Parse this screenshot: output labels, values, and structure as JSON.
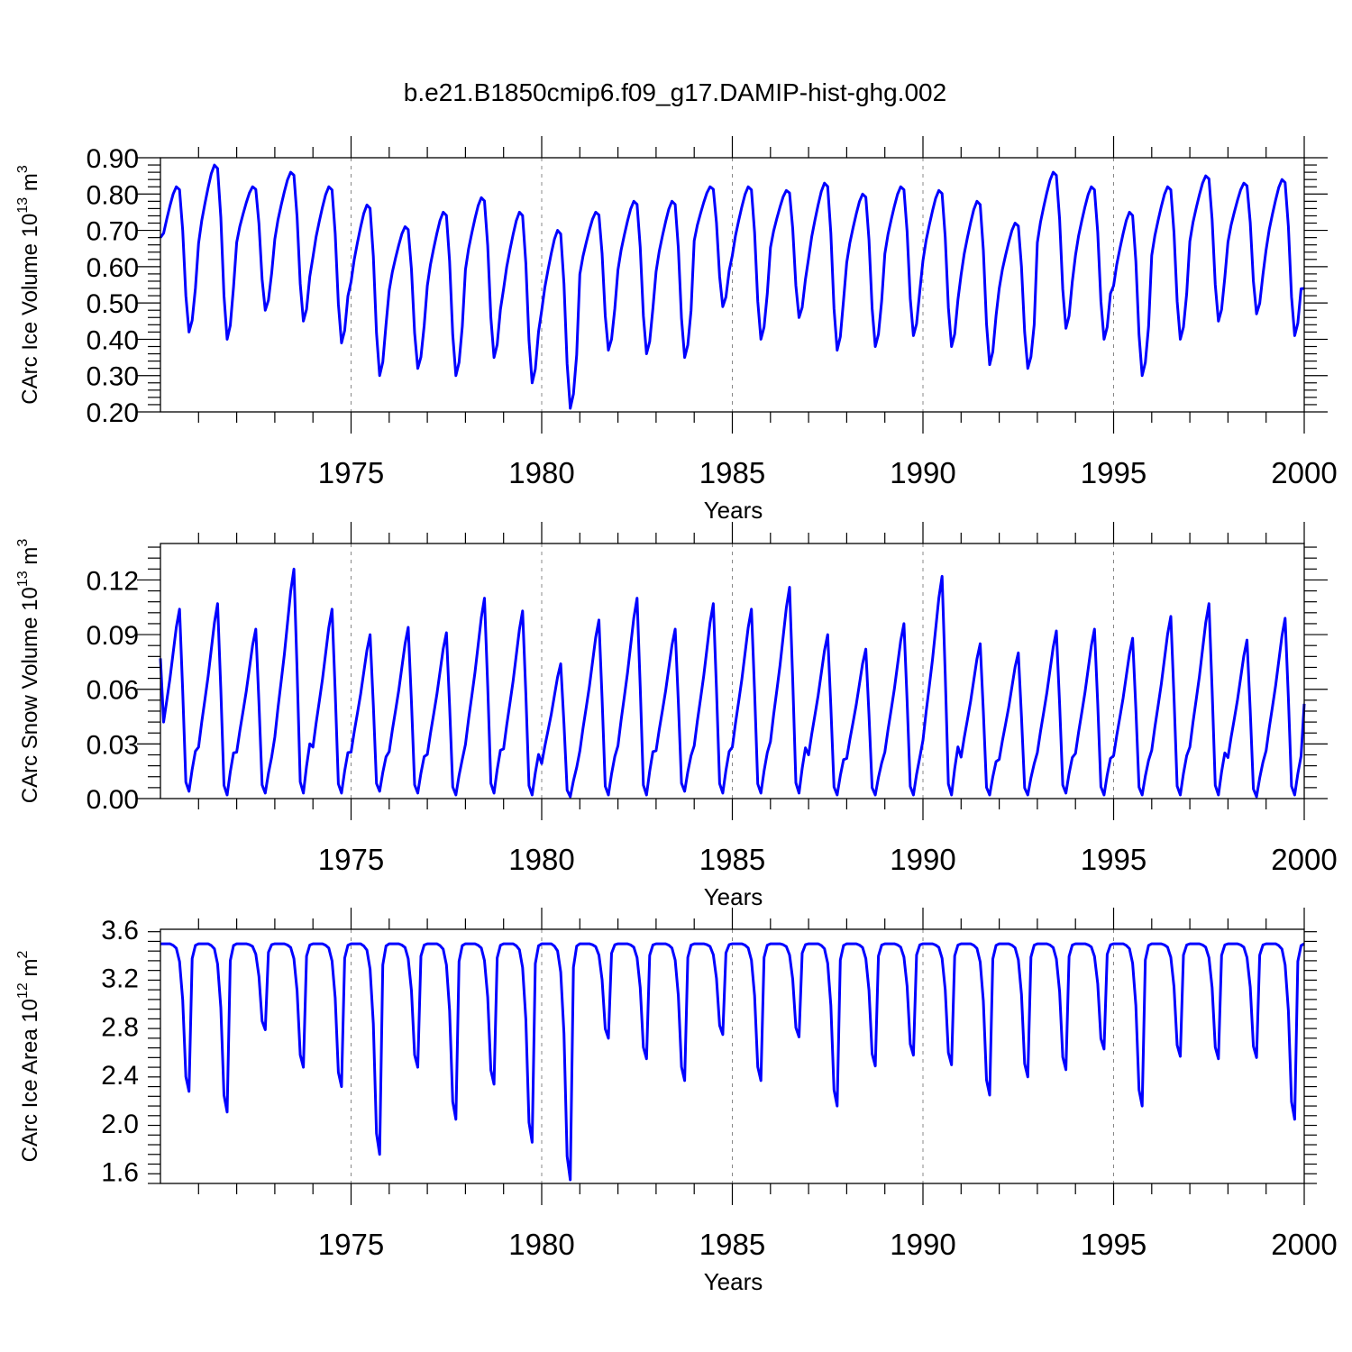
{
  "chart_data": {
    "type": "line",
    "title": "b.e21.B1850cmip6.f09_g17.DAMIP-hist-ghg.002",
    "line_color": "#0000ff",
    "x_start_year": 1970,
    "x_end_year": 2000,
    "panels": [
      {
        "id": "ice-volume",
        "ylabel": {
          "main": "CArc Ice Volume 10",
          "exp": "13",
          "unit": " m",
          "unit_exp": "3"
        },
        "xlabel": "Years",
        "ylim": [
          0.2,
          0.9
        ],
        "yticks": [
          0.2,
          0.3,
          0.4,
          0.5,
          0.6,
          0.7,
          0.8,
          0.9
        ],
        "ytick_labels": [
          "0.20",
          "0.30",
          "0.40",
          "0.50",
          "0.60",
          "0.70",
          "0.80",
          "0.90"
        ],
        "xticks": [
          1975,
          1980,
          1985,
          1990,
          1995,
          2000
        ],
        "xtick_labels": [
          "1975",
          "1980",
          "1985",
          "1990",
          "1995",
          "2000"
        ],
        "annual_max": [
          0.82,
          0.88,
          0.82,
          0.86,
          0.82,
          0.77,
          0.71,
          0.75,
          0.79,
          0.75,
          0.7,
          0.75,
          0.78,
          0.78,
          0.82,
          0.82,
          0.81,
          0.83,
          0.8,
          0.82,
          0.81,
          0.78,
          0.72,
          0.86,
          0.82,
          0.75,
          0.82,
          0.85,
          0.83,
          0.84
        ],
        "annual_min": [
          0.42,
          0.4,
          0.48,
          0.45,
          0.39,
          0.3,
          0.32,
          0.3,
          0.35,
          0.28,
          0.21,
          0.37,
          0.36,
          0.35,
          0.49,
          0.4,
          0.46,
          0.37,
          0.38,
          0.41,
          0.38,
          0.33,
          0.32,
          0.43,
          0.4,
          0.3,
          0.4,
          0.45,
          0.47,
          0.41
        ],
        "start_value": 0.68,
        "end_value": 0.54
      },
      {
        "id": "snow-volume",
        "ylabel": {
          "main": "CArc Snow Volume 10",
          "exp": "13",
          "unit": " m",
          "unit_exp": "3"
        },
        "xlabel": "Years",
        "ylim": [
          0.0,
          0.14
        ],
        "yticks": [
          0.0,
          0.03,
          0.06,
          0.09,
          0.12
        ],
        "ytick_labels": [
          "0.00",
          "0.03",
          "0.06",
          "0.09",
          "0.12"
        ],
        "xticks": [
          1975,
          1980,
          1985,
          1990,
          1995,
          2000
        ],
        "xtick_labels": [
          "1975",
          "1980",
          "1985",
          "1990",
          "1995",
          "2000"
        ],
        "annual_max": [
          0.104,
          0.107,
          0.093,
          0.126,
          0.104,
          0.09,
          0.094,
          0.091,
          0.11,
          0.103,
          0.074,
          0.098,
          0.11,
          0.093,
          0.107,
          0.104,
          0.116,
          0.09,
          0.082,
          0.096,
          0.122,
          0.085,
          0.08,
          0.092,
          0.093,
          0.088,
          0.1,
          0.107,
          0.087,
          0.099
        ],
        "annual_min": [
          0.004,
          0.002,
          0.003,
          0.003,
          0.003,
          0.004,
          0.003,
          0.002,
          0.003,
          0.002,
          0.001,
          0.002,
          0.002,
          0.004,
          0.003,
          0.003,
          0.003,
          0.002,
          0.002,
          0.002,
          0.002,
          0.002,
          0.002,
          0.003,
          0.002,
          0.002,
          0.002,
          0.002,
          0.001,
          0.002
        ],
        "start_value": 0.077,
        "end_value": 0.052
      },
      {
        "id": "ice-area",
        "ylabel": {
          "main": "CArc Ice Area 10",
          "exp": "12",
          "unit": " m",
          "unit_exp": "2"
        },
        "xlabel": "Years",
        "ylim": [
          1.5,
          3.6
        ],
        "yticks": [
          1.6,
          2.0,
          2.4,
          2.8,
          3.2,
          3.6
        ],
        "ytick_labels": [
          "1.6",
          "2.0",
          "2.4",
          "2.8",
          "3.2",
          "3.6"
        ],
        "xticks": [
          1975,
          1980,
          1985,
          1990,
          1995,
          2000
        ],
        "xtick_labels": [
          "1975",
          "1980",
          "1985",
          "1990",
          "1995",
          "2000"
        ],
        "annual_max": [
          3.48,
          3.48,
          3.48,
          3.48,
          3.48,
          3.48,
          3.48,
          3.48,
          3.48,
          3.48,
          3.48,
          3.48,
          3.48,
          3.48,
          3.48,
          3.48,
          3.48,
          3.48,
          3.48,
          3.48,
          3.48,
          3.48,
          3.48,
          3.48,
          3.48,
          3.48,
          3.48,
          3.48,
          3.48,
          3.48
        ],
        "annual_min": [
          2.26,
          2.09,
          2.77,
          2.46,
          2.3,
          1.74,
          2.46,
          2.03,
          2.32,
          1.84,
          1.53,
          2.7,
          2.53,
          2.35,
          2.73,
          2.35,
          2.71,
          2.14,
          2.47,
          2.56,
          2.48,
          2.23,
          2.38,
          2.44,
          2.61,
          2.14,
          2.55,
          2.53,
          2.54,
          2.03
        ],
        "start_value": 3.48,
        "end_value": 3.48
      }
    ]
  }
}
